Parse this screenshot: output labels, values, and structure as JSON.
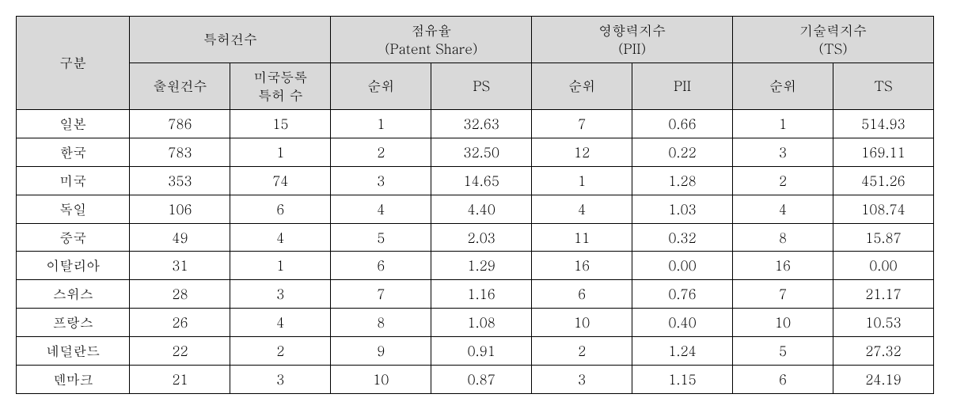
{
  "table": {
    "type": "table",
    "background_color": "#ffffff",
    "header_bg": "#d9d9d9",
    "border_color": "#000000",
    "font_size": 17,
    "headers": {
      "corner": "구분",
      "group1": "특허건수",
      "group2_line1": "점유율",
      "group2_line2": "(Patent Share)",
      "group3_line1": "영향력지수",
      "group3_line2": "(PII)",
      "group4_line1": "기술력지수",
      "group4_line2": "(TS)",
      "sub1": "출원건수",
      "sub2_line1": "미국등록",
      "sub2_line2": "특허 수",
      "sub_rank": "순위",
      "sub_ps": "PS",
      "sub_pii": "PII",
      "sub_ts": "TS"
    },
    "rows": [
      {
        "country": "일본",
        "apps": "786",
        "us_reg": "15",
        "ps_rank": "1",
        "ps": "32.63",
        "pii_rank": "7",
        "pii": "0.66",
        "ts_rank": "1",
        "ts": "514.93"
      },
      {
        "country": "한국",
        "apps": "783",
        "us_reg": "1",
        "ps_rank": "2",
        "ps": "32.50",
        "pii_rank": "12",
        "pii": "0.22",
        "ts_rank": "3",
        "ts": "169.11"
      },
      {
        "country": "미국",
        "apps": "353",
        "us_reg": "74",
        "ps_rank": "3",
        "ps": "14.65",
        "pii_rank": "1",
        "pii": "1.28",
        "ts_rank": "2",
        "ts": "451.26"
      },
      {
        "country": "독일",
        "apps": "106",
        "us_reg": "6",
        "ps_rank": "4",
        "ps": "4.40",
        "pii_rank": "4",
        "pii": "1.03",
        "ts_rank": "4",
        "ts": "108.74"
      },
      {
        "country": "중국",
        "apps": "49",
        "us_reg": "4",
        "ps_rank": "5",
        "ps": "2.03",
        "pii_rank": "11",
        "pii": "0.32",
        "ts_rank": "8",
        "ts": "15.87"
      },
      {
        "country": "이탈리아",
        "apps": "31",
        "us_reg": "1",
        "ps_rank": "6",
        "ps": "1.29",
        "pii_rank": "16",
        "pii": "0.00",
        "ts_rank": "16",
        "ts": "0.00"
      },
      {
        "country": "스위스",
        "apps": "28",
        "us_reg": "3",
        "ps_rank": "7",
        "ps": "1.16",
        "pii_rank": "6",
        "pii": "0.76",
        "ts_rank": "7",
        "ts": "21.17"
      },
      {
        "country": "프랑스",
        "apps": "26",
        "us_reg": "4",
        "ps_rank": "8",
        "ps": "1.08",
        "pii_rank": "10",
        "pii": "0.40",
        "ts_rank": "10",
        "ts": "10.53"
      },
      {
        "country": "네덜란드",
        "apps": "22",
        "us_reg": "2",
        "ps_rank": "9",
        "ps": "0.91",
        "pii_rank": "2",
        "pii": "1.24",
        "ts_rank": "5",
        "ts": "27.32"
      },
      {
        "country": "덴마크",
        "apps": "21",
        "us_reg": "3",
        "ps_rank": "10",
        "ps": "0.87",
        "pii_rank": "3",
        "pii": "1.15",
        "ts_rank": "6",
        "ts": "24.19"
      }
    ]
  }
}
